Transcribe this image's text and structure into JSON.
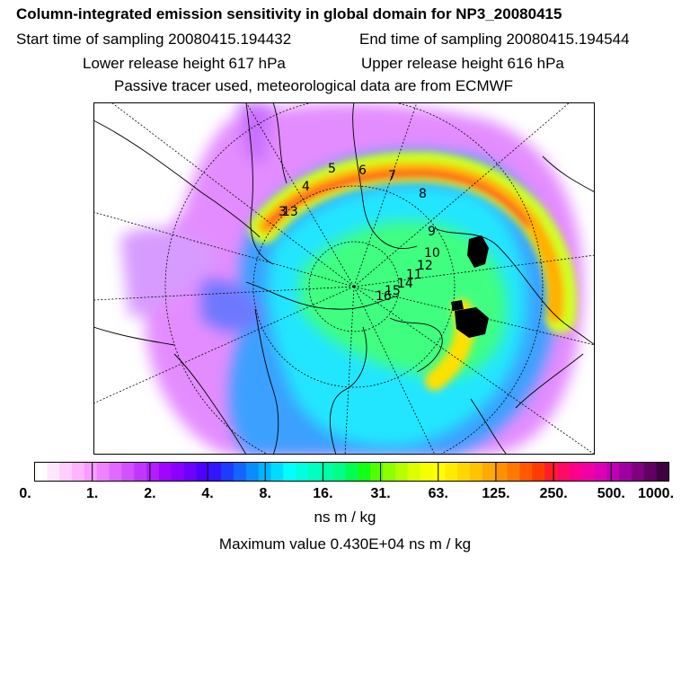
{
  "header": {
    "title": "Column-integrated emission sensitivity in global domain for NP3_20080415",
    "start_time": "Start time of sampling 20080415.194432",
    "end_time": "End time of sampling 20080415.194544",
    "lower_height": "Lower release height  617 hPa",
    "upper_height": "Upper release height  616 hPa",
    "tracer_note": "Passive tracer used, meteorological data are from ECMWF"
  },
  "map": {
    "projection": "polar stereographic (north pole)",
    "flight_labels": [
      "3",
      "4",
      "5",
      "6",
      "7",
      "8",
      "9",
      "10",
      "11",
      "12",
      "13",
      "14",
      "15",
      "16"
    ]
  },
  "colorbar": {
    "tick_labels": [
      "0.",
      "1.",
      "2.",
      "4.",
      "8.",
      "16.",
      "31.",
      "63.",
      "125.",
      "250.",
      "500.",
      "1000."
    ],
    "colors": [
      "#ffffff",
      "#ffe6ff",
      "#ffcdff",
      "#ffb4ff",
      "#f99bff",
      "#ee82ff",
      "#e169ff",
      "#d250ff",
      "#c137ff",
      "#b01eff",
      "#9f05ff",
      "#8a00ff",
      "#6e00ff",
      "#5000ff",
      "#3214ff",
      "#1e3cff",
      "#1464ff",
      "#0a8cff",
      "#00b4ff",
      "#00dcff",
      "#00ffff",
      "#00ffe1",
      "#00ffc3",
      "#00ffa5",
      "#00ff87",
      "#00ff50",
      "#14ff14",
      "#50ff00",
      "#8cff00",
      "#b4ff00",
      "#dcff00",
      "#f5ff00",
      "#ffff00",
      "#ffeb00",
      "#ffd700",
      "#ffc300",
      "#ffaa00",
      "#ff9100",
      "#ff7800",
      "#ff5a00",
      "#ff3c00",
      "#ff1e28",
      "#ff0a64",
      "#ff008c",
      "#f000a5",
      "#dc00b4",
      "#c000b4",
      "#a000a0",
      "#800080",
      "#600060",
      "#400040"
    ],
    "units": "ns m / kg",
    "max_value": "Maximum value  0.430E+04 ns m / kg"
  }
}
